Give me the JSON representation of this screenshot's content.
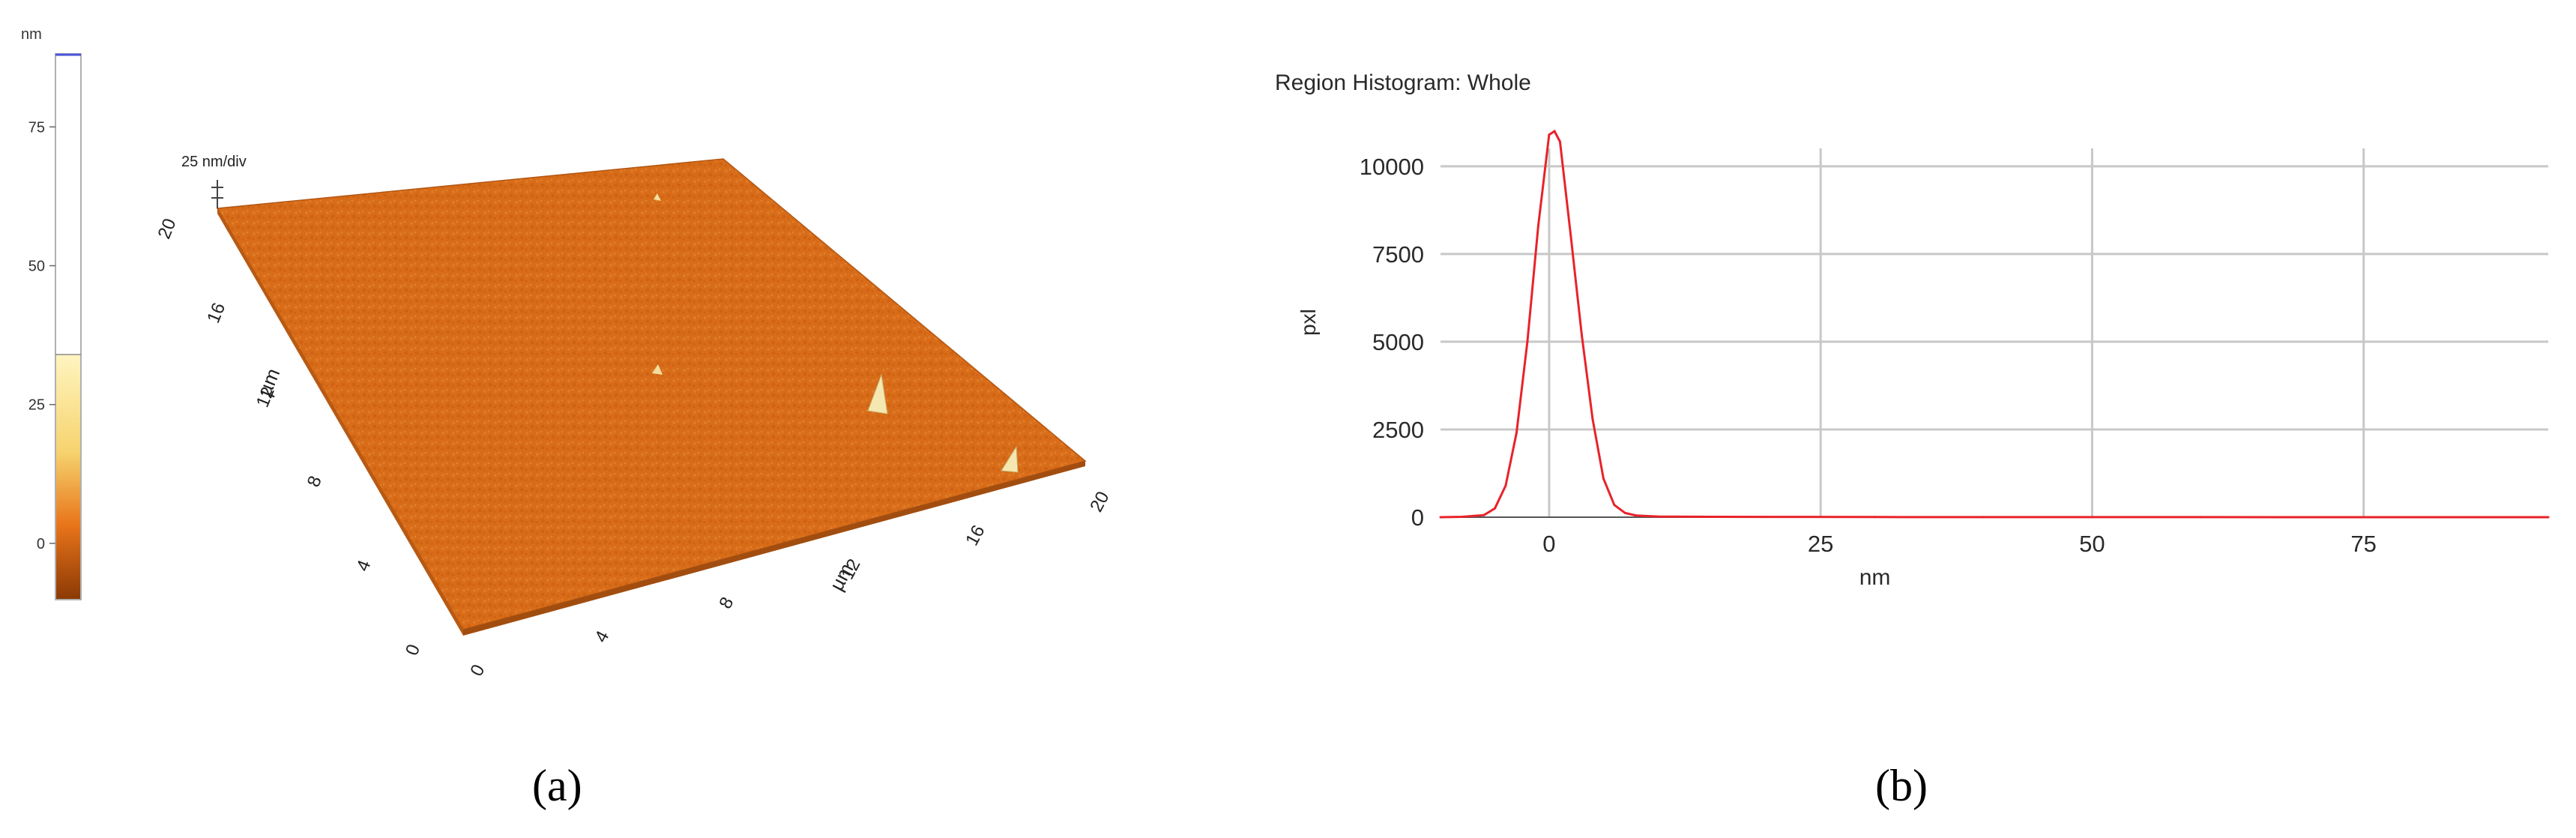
{
  "panel_a": {
    "caption": "(a)",
    "colorbar": {
      "unit": "nm",
      "ticks": [
        "75",
        "50",
        "25",
        "0"
      ],
      "tick_values": [
        75,
        50,
        25,
        0
      ],
      "range": [
        -10,
        88
      ],
      "fill_top": 34,
      "colors": [
        "#8b3a05",
        "#e8741a",
        "#fff5c0"
      ]
    },
    "surface": {
      "z_scale_label": "25 nm/div",
      "x_axis_ticks": [
        "0",
        "4",
        "8",
        "12",
        "16",
        "20"
      ],
      "y_axis_ticks": [
        "0",
        "4",
        "8",
        "12",
        "16",
        "20"
      ],
      "x_axis_unit": "µm",
      "y_axis_unit": "µm",
      "surface_color": "#d86c18"
    }
  },
  "panel_b": {
    "caption": "(b)",
    "chart_data": {
      "type": "line",
      "title": "Region Histogram: Whole",
      "xlabel": "nm",
      "ylabel": "pxl",
      "xlim": [
        -10,
        92
      ],
      "ylim": [
        0,
        11000
      ],
      "x_ticks": [
        0,
        25,
        50,
        75
      ],
      "x_tick_labels": [
        "0",
        "25",
        "50",
        "75"
      ],
      "y_ticks": [
        0,
        2500,
        5000,
        7500,
        10000
      ],
      "y_tick_labels": [
        "0",
        "2500",
        "5000",
        "7500",
        "10000"
      ],
      "grid": true,
      "series": [
        {
          "color": "#e8232a",
          "x": [
            -10,
            -8,
            -6,
            -5,
            -4,
            -3,
            -2,
            -1,
            0,
            0.5,
            1,
            2,
            3,
            4,
            5,
            6,
            7,
            8,
            10,
            15,
            20,
            30,
            40,
            50,
            60,
            70,
            80,
            92
          ],
          "y": [
            0,
            10,
            60,
            250,
            900,
            2400,
            5000,
            8300,
            10900,
            11000,
            10700,
            8000,
            5200,
            2800,
            1100,
            350,
            120,
            50,
            20,
            10,
            8,
            5,
            3,
            2,
            2,
            1,
            1,
            0
          ]
        }
      ]
    }
  }
}
